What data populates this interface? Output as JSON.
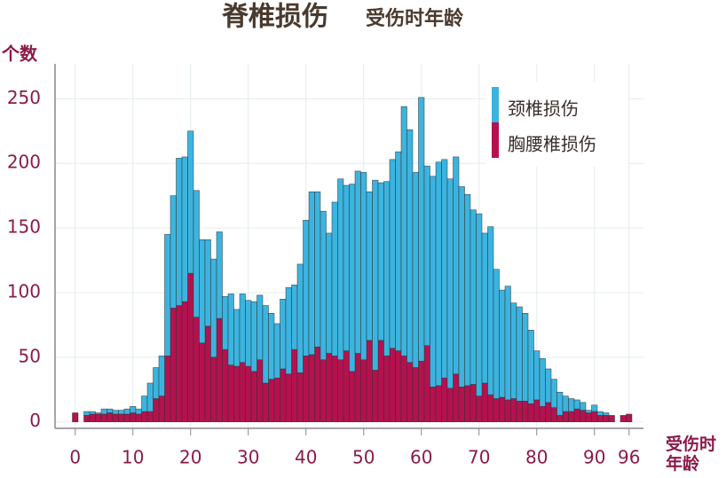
{
  "chart_data": {
    "type": "histogram",
    "title": "脊椎损伤",
    "subtitle": "受伤时年龄",
    "y_label": "个数",
    "x_label": "受伤时年龄",
    "bins": [
      -0.5,
      0.5,
      1.5,
      2.5,
      3.5,
      4.5,
      5.5,
      6.5,
      7.5,
      8.5,
      9.5,
      10.5,
      11.5,
      12.5,
      13.5,
      14.5,
      15.5,
      16.5,
      17.5,
      18.5,
      19.5,
      20.5,
      21.5,
      22.5,
      23.5,
      24.5,
      25.5,
      26.5,
      27.5,
      28.5,
      29.5,
      30.5,
      31.5,
      32.5,
      33.5,
      34.5,
      35.5,
      36.5,
      37.5,
      38.5,
      39.5,
      40.5,
      41.5,
      42.5,
      43.5,
      44.5,
      45.5,
      46.5,
      47.5,
      48.5,
      49.5,
      50.5,
      51.5,
      52.5,
      53.5,
      54.5,
      55.5,
      56.5,
      57.5,
      58.5,
      59.5,
      60.5,
      61.5,
      62.5,
      63.5,
      64.5,
      65.5,
      66.5,
      67.5,
      68.5,
      69.5,
      70.5,
      71.5,
      72.5,
      73.5,
      74.5,
      75.5,
      76.5,
      77.5,
      78.5,
      79.5,
      80.5,
      81.5,
      82.5,
      83.5,
      84.5,
      85.5,
      86.5,
      87.5,
      88.5,
      89.5,
      90.5,
      91.5,
      92.5,
      93.5,
      94.5,
      95.5,
      96.5
    ],
    "series": [
      {
        "name": "颈椎损伤",
        "color": "#3bb4e0",
        "values": [
          0,
          0,
          3,
          2,
          1,
          4,
          3,
          3,
          3,
          4,
          5,
          4,
          12,
          22,
          24,
          31,
          94,
          87,
          114,
          112,
          110,
          98,
          80,
          67,
          76,
          67,
          41,
          55,
          44,
          53,
          51,
          54,
          50,
          60,
          51,
          42,
          54,
          67,
          50,
          84,
          105,
          126,
          120,
          115,
          93,
          119,
          140,
          128,
          145,
          141,
          145,
          115,
          147,
          122,
          135,
          146,
          154,
          193,
          180,
          151,
          204,
          139,
          163,
          173,
          169,
          162,
          168,
          155,
          148,
          135,
          141,
          116,
          130,
          100,
          83,
          88,
          74,
          73,
          68,
          57,
          38,
          37,
          26,
          22,
          18,
          12,
          10,
          7,
          6,
          2,
          5,
          3,
          2,
          0,
          0,
          0,
          0
        ]
      },
      {
        "name": "胸腰椎损伤",
        "color": "#b5114f",
        "values": [
          7,
          0,
          5,
          6,
          6,
          6,
          7,
          6,
          6,
          6,
          7,
          6,
          8,
          8,
          18,
          20,
          51,
          88,
          90,
          93,
          115,
          81,
          61,
          74,
          50,
          80,
          56,
          44,
          43,
          46,
          43,
          39,
          48,
          30,
          33,
          34,
          41,
          37,
          56,
          38,
          51,
          52,
          58,
          48,
          53,
          51,
          48,
          55,
          39,
          53,
          48,
          63,
          40,
          63,
          51,
          57,
          55,
          51,
          46,
          42,
          47,
          59,
          27,
          28,
          34,
          26,
          37,
          27,
          28,
          29,
          20,
          30,
          21,
          18,
          19,
          17,
          18,
          16,
          16,
          14,
          17,
          12,
          15,
          11,
          5,
          8,
          8,
          10,
          9,
          7,
          8,
          5,
          5,
          5,
          0,
          5,
          6
        ]
      }
    ],
    "xlim": [
      -3.5,
      98.5
    ],
    "xticks": [
      0,
      10,
      20,
      30,
      40,
      50,
      60,
      70,
      80,
      90,
      96
    ],
    "ylim": [
      -5,
      277
    ],
    "yticks": [
      0,
      50,
      100,
      150,
      200,
      250
    ],
    "grid": true,
    "stacked": true,
    "legend": "upper right"
  }
}
